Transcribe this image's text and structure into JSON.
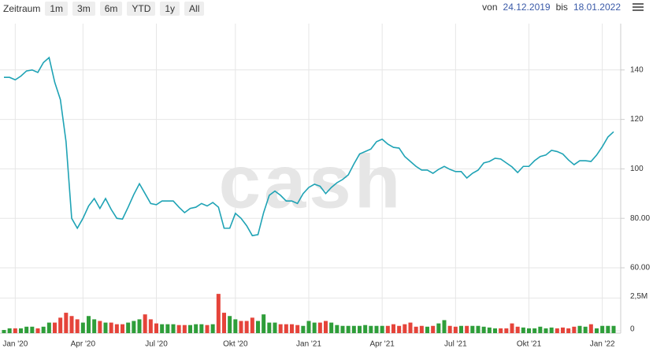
{
  "header": {
    "label": "Zeitraum",
    "buttons": [
      "1m",
      "3m",
      "6m",
      "YTD",
      "1y",
      "All"
    ],
    "from_label": "von",
    "from": "24.12.2019",
    "to_label": "bis",
    "to": "18.01.2022"
  },
  "chart_data": {
    "type": "line",
    "watermark": "cash",
    "color": "#1fa3b5",
    "grid": true,
    "categories": [
      null,
      null,
      "Jan '20",
      null,
      null,
      null,
      null,
      null,
      null,
      null,
      null,
      null,
      null,
      null,
      "Apr '20",
      null,
      null,
      null,
      null,
      null,
      null,
      null,
      null,
      null,
      null,
      null,
      null,
      "Jul '20",
      null,
      null,
      null,
      null,
      null,
      null,
      null,
      null,
      null,
      null,
      null,
      null,
      null,
      "Okt '20",
      null,
      null,
      null,
      null,
      null,
      null,
      null,
      null,
      null,
      null,
      null,
      null,
      "Jan '21",
      null,
      null,
      null,
      null,
      null,
      null,
      null,
      null,
      null,
      null,
      null,
      null,
      "Apr '21",
      null,
      null,
      null,
      null,
      null,
      null,
      null,
      null,
      null,
      null,
      null,
      null,
      "Jul '21",
      null,
      null,
      null,
      null,
      null,
      null,
      null,
      null,
      null,
      null,
      null,
      null,
      "Okt '21",
      null,
      null,
      null,
      null,
      null,
      null,
      null,
      null,
      null,
      null,
      null,
      null,
      "Jan '22",
      null,
      null
    ],
    "values": [
      137,
      137,
      136,
      137.5,
      139.6,
      140,
      139,
      143,
      145,
      135,
      128,
      111,
      80,
      76,
      80,
      85,
      88,
      84,
      88,
      83.6,
      80,
      79.7,
      84.5,
      89.6,
      94,
      90,
      86,
      85.5,
      87,
      87,
      87,
      84.5,
      82.3,
      84,
      84.5,
      86,
      85,
      86.4,
      84.5,
      76,
      76,
      82,
      80,
      77,
      73,
      73.4,
      82.3,
      89.3,
      91,
      89.3,
      87,
      87,
      86,
      90,
      92.5,
      93.8,
      93,
      90,
      92.5,
      94.4,
      95.7,
      97.6,
      102,
      106,
      107,
      108,
      111,
      112,
      110,
      108.7,
      108.4,
      105,
      103,
      101,
      99.5,
      99.5,
      98.2,
      99.8,
      101,
      99.8,
      98.9,
      98.9,
      96.3,
      98.2,
      99.5,
      102.4,
      103,
      104.3,
      104,
      102.4,
      100.8,
      98.5,
      101,
      101,
      103.3,
      105,
      105.6,
      107.5,
      107,
      106,
      103.6,
      101.7,
      103.3,
      103.3,
      103,
      105.6,
      109,
      112.9,
      115
    ],
    "ylim": [
      60,
      155
    ],
    "yticks": [
      {
        "value": 60,
        "label": "60.00"
      },
      {
        "value": 80,
        "label": "80.00"
      },
      100,
      120,
      140
    ],
    "volume": {
      "ylim": [
        0,
        3000000
      ],
      "yticks": [
        0,
        {
          "value": 2500000,
          "label": "2,5M"
        }
      ],
      "values": [
        62500,
        187500,
        187500,
        187500,
        312500,
        312500,
        187500,
        312500,
        625000,
        625000,
        1000000,
        1375000,
        1125000,
        875000,
        625000,
        1125000,
        875000,
        750000,
        625000,
        625000,
        500000,
        500000,
        625000,
        750000,
        875000,
        1250000,
        875000,
        562500,
        500000,
        500000,
        500000,
        437500,
        437500,
        437500,
        500000,
        500000,
        437500,
        500000,
        2812500,
        1375000,
        1125000,
        875000,
        750000,
        750000,
        1000000,
        750000,
        1250000,
        625000,
        625000,
        500000,
        500000,
        500000,
        437500,
        375000,
        750000,
        625000,
        625000,
        750000,
        625000,
        437500,
        375000,
        375000,
        375000,
        375000,
        437500,
        375000,
        375000,
        375000,
        375000,
        500000,
        375000,
        500000,
        625000,
        312500,
        375000,
        312500,
        375000,
        562500,
        812500,
        375000,
        312500,
        375000,
        375000,
        375000,
        375000,
        312500,
        250000,
        187500,
        187500,
        187500,
        562500,
        312500,
        250000,
        187500,
        187500,
        312500,
        187500,
        250000,
        187500,
        250000,
        187500,
        312500,
        375000,
        312500,
        500000,
        187500,
        375000,
        375000,
        375000
      ],
      "colors": [
        "#2f9e3a",
        "#2f9e3a",
        "#e5443a",
        "#2f9e3a",
        "#2f9e3a",
        "#2f9e3a",
        "#e5443a",
        "#2f9e3a",
        "#2f9e3a",
        "#e5443a",
        "#e5443a",
        "#e5443a",
        "#e5443a",
        "#e5443a",
        "#2f9e3a",
        "#2f9e3a",
        "#2f9e3a",
        "#e5443a",
        "#2f9e3a",
        "#e5443a",
        "#e5443a",
        "#e5443a",
        "#2f9e3a",
        "#2f9e3a",
        "#2f9e3a",
        "#e5443a",
        "#e5443a",
        "#e5443a",
        "#2f9e3a",
        "#2f9e3a",
        "#2f9e3a",
        "#e5443a",
        "#e5443a",
        "#2f9e3a",
        "#2f9e3a",
        "#2f9e3a",
        "#e5443a",
        "#2f9e3a",
        "#e5443a",
        "#e5443a",
        "#2f9e3a",
        "#2f9e3a",
        "#e5443a",
        "#e5443a",
        "#e5443a",
        "#2f9e3a",
        "#2f9e3a",
        "#2f9e3a",
        "#2f9e3a",
        "#e5443a",
        "#e5443a",
        "#e5443a",
        "#e5443a",
        "#2f9e3a",
        "#2f9e3a",
        "#2f9e3a",
        "#e5443a",
        "#e5443a",
        "#2f9e3a",
        "#2f9e3a",
        "#2f9e3a",
        "#2f9e3a",
        "#2f9e3a",
        "#2f9e3a",
        "#2f9e3a",
        "#2f9e3a",
        "#2f9e3a",
        "#2f9e3a",
        "#e5443a",
        "#e5443a",
        "#e5443a",
        "#e5443a",
        "#e5443a",
        "#e5443a",
        "#e5443a",
        "#2f9e3a",
        "#e5443a",
        "#2f9e3a",
        "#2f9e3a",
        "#e5443a",
        "#e5443a",
        "#2f9e3a",
        "#e5443a",
        "#2f9e3a",
        "#2f9e3a",
        "#2f9e3a",
        "#2f9e3a",
        "#2f9e3a",
        "#e5443a",
        "#e5443a",
        "#e5443a",
        "#e5443a",
        "#2f9e3a",
        "#2f9e3a",
        "#2f9e3a",
        "#2f9e3a",
        "#2f9e3a",
        "#2f9e3a",
        "#e5443a",
        "#e5443a",
        "#e5443a",
        "#e5443a",
        "#2f9e3a",
        "#2f9e3a",
        "#e5443a",
        "#2f9e3a",
        "#2f9e3a",
        "#2f9e3a",
        "#2f9e3a"
      ]
    }
  }
}
